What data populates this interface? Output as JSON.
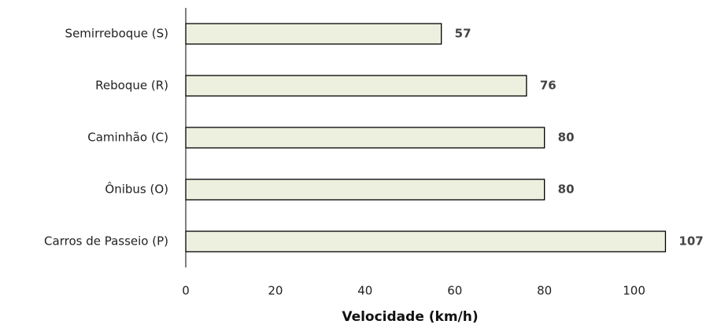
{
  "chart_data": {
    "type": "bar",
    "orientation": "horizontal",
    "categories": [
      "Semirreboque (S)",
      "Reboque (R)",
      "Caminhão (C)",
      "Ônibus (O)",
      "Carros de Passeio (P)"
    ],
    "values": [
      57,
      76,
      80,
      80,
      107
    ],
    "color": "#eef0df",
    "x_label": "Velocidade (km/h)",
    "xlim": [
      0,
      115
    ],
    "xticks": [
      0,
      20,
      40,
      60,
      80,
      100
    ],
    "grid": false
  }
}
